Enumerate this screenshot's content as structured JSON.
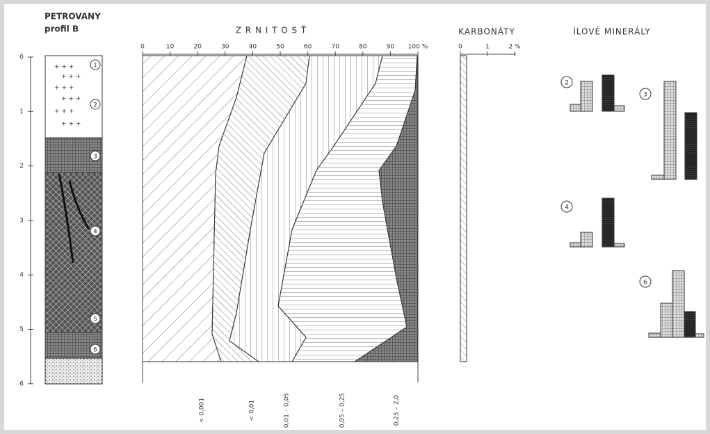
{
  "header": {
    "title": "PETROVANY",
    "subtitle": "profil B"
  },
  "depth_axis": {
    "ticks": [
      "0",
      "1",
      "2",
      "3",
      "4",
      "5",
      "6"
    ]
  },
  "layers": [
    "1",
    "2",
    "3",
    "4",
    "5",
    "6"
  ],
  "grain_size": {
    "title": "Z R N I T O S Ť",
    "ticks": [
      "0",
      "10",
      "20",
      "30",
      "40",
      "50",
      "60",
      "70",
      "80",
      "90",
      "100 %"
    ],
    "fractions": [
      "< 0,001",
      "< 0,01",
      "0,01 – 0,05",
      "0,05 – 0,25",
      "0,25 – 2,0"
    ]
  },
  "carbonates": {
    "title": "KARBONÁTY",
    "ticks": [
      "0",
      "1",
      "2 %"
    ]
  },
  "clay_minerals": {
    "title": "ÍLOVÉ MINERÁLY",
    "samples": [
      "2",
      "3",
      "4",
      "6"
    ]
  }
}
